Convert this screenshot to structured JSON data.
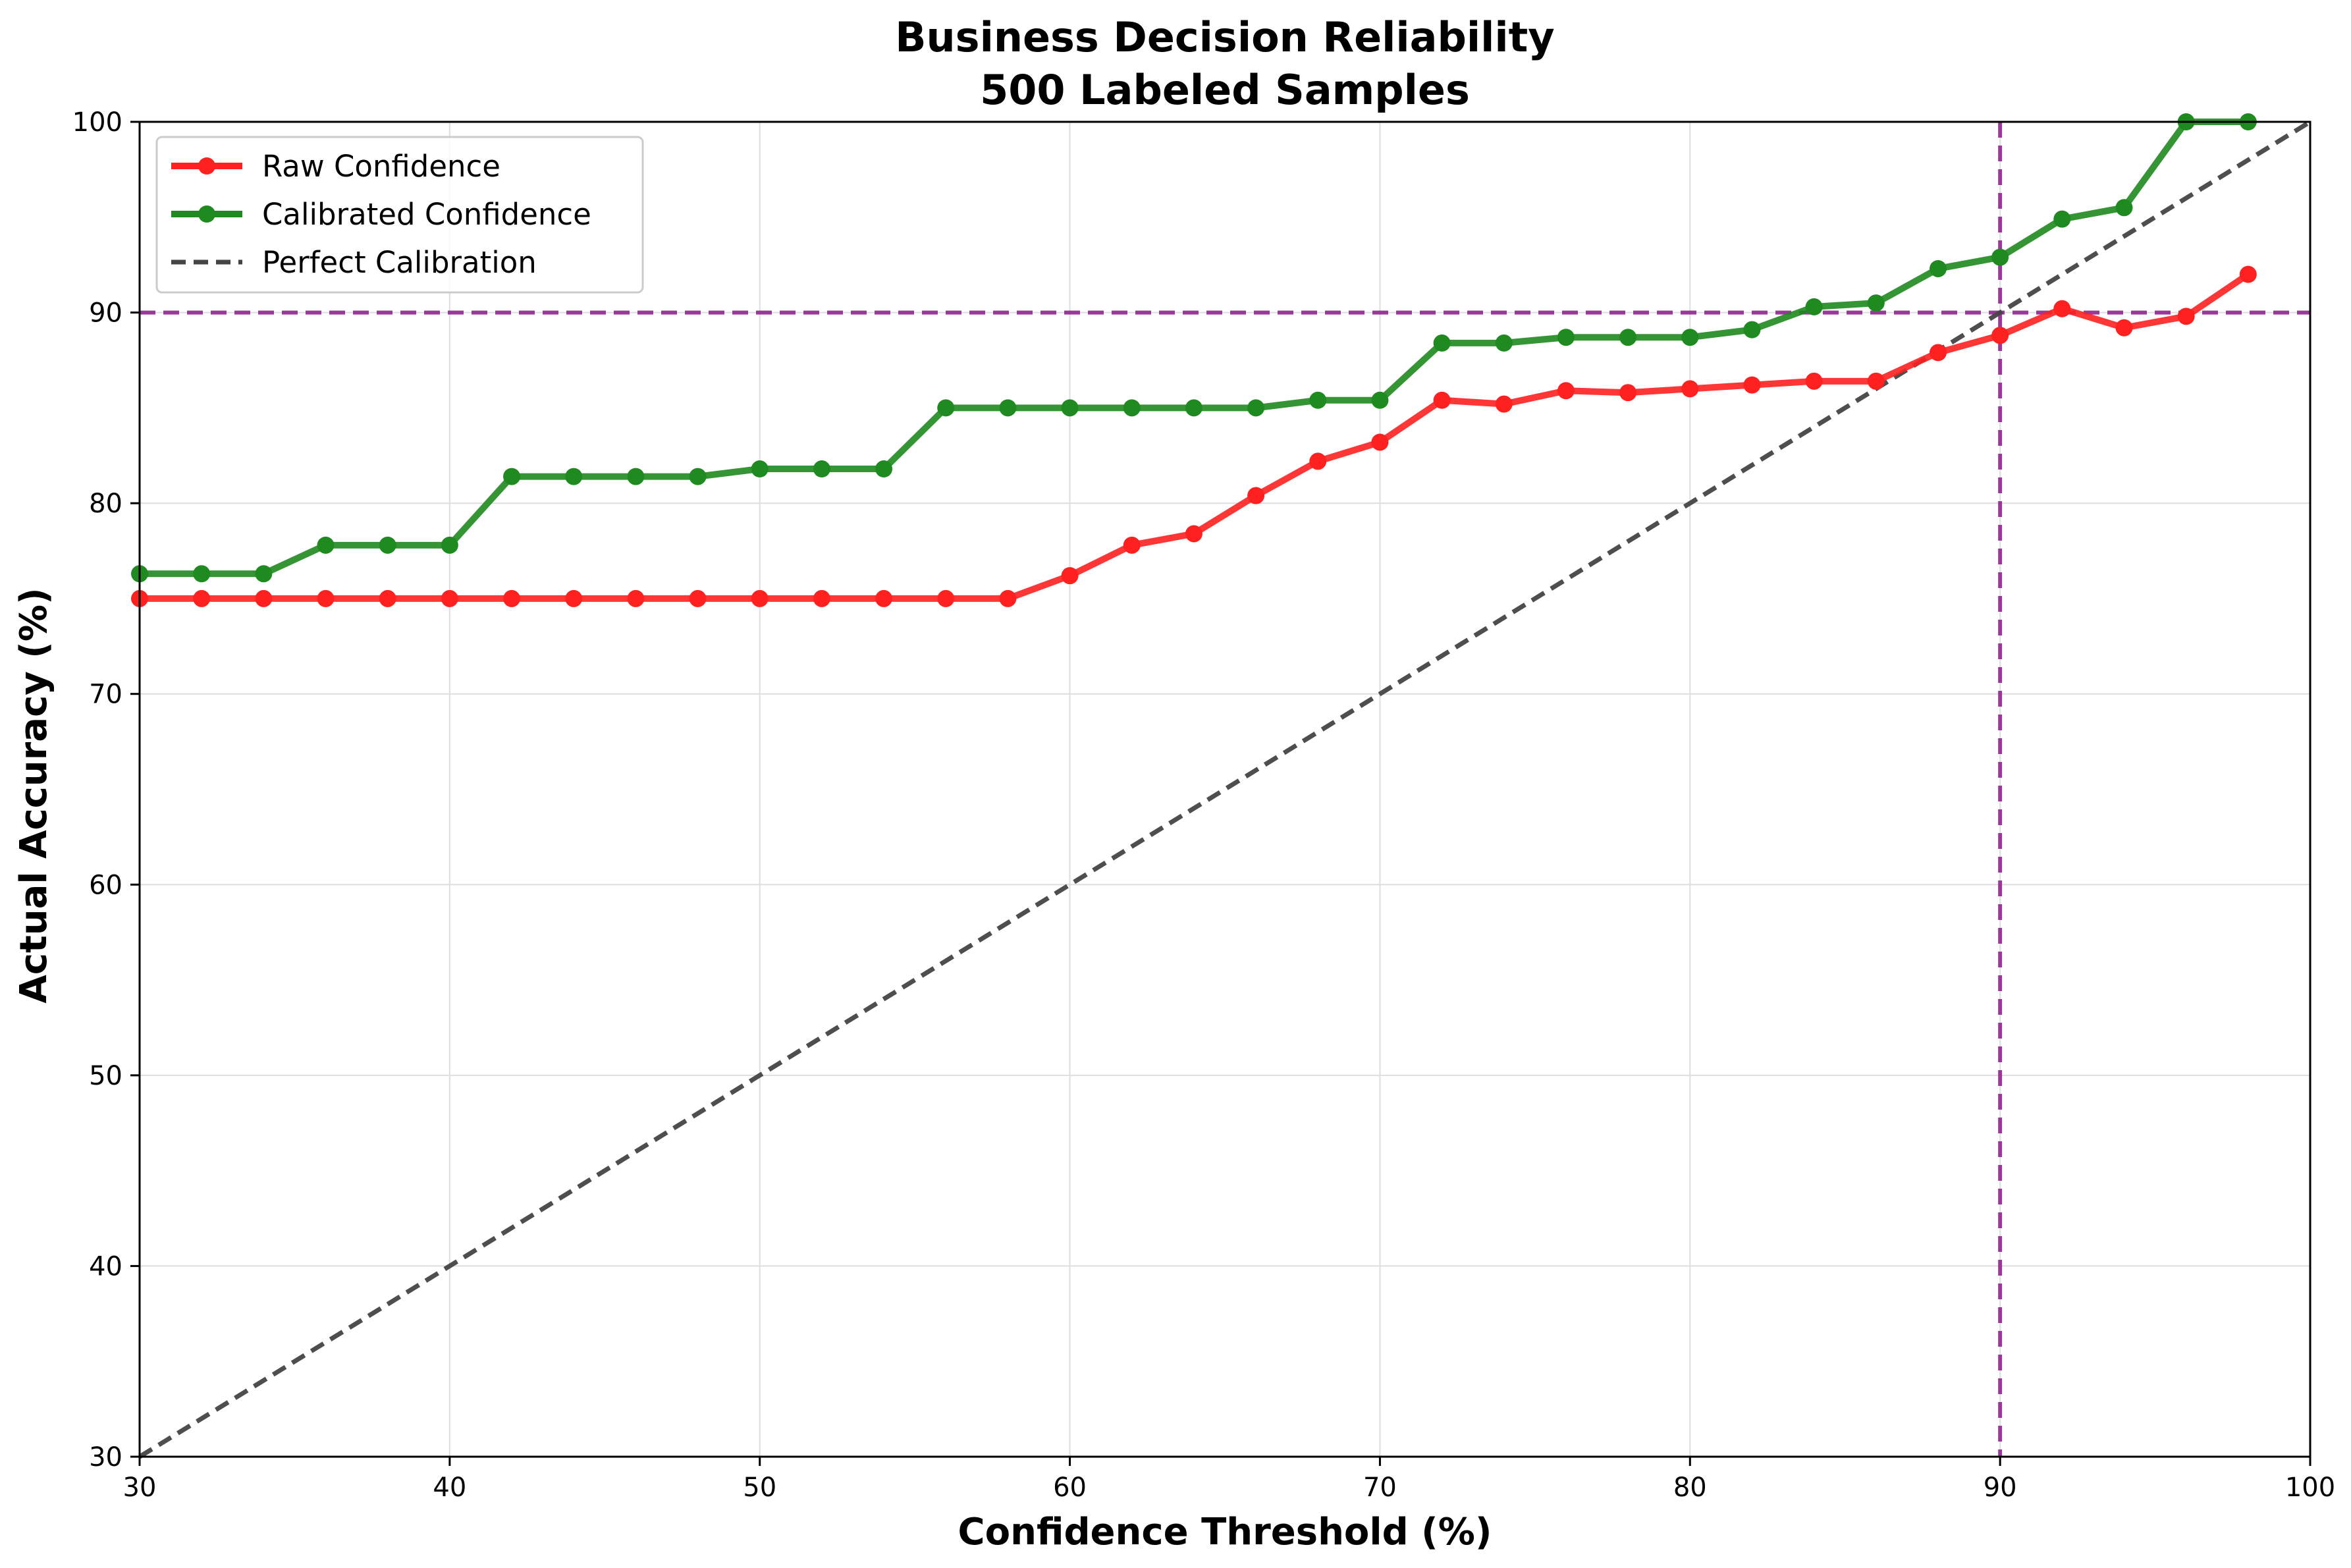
{
  "chart_data": {
    "type": "line",
    "title": "Business Decision Reliability",
    "subtitle": "500 Labeled Samples",
    "xlabel": "Confidence Threshold (%)",
    "ylabel": "Actual Accuracy (%)",
    "xlim": [
      30,
      100
    ],
    "ylim": [
      30,
      100
    ],
    "xticks": [
      30,
      40,
      50,
      60,
      70,
      80,
      90,
      100
    ],
    "yticks": [
      30,
      40,
      50,
      60,
      70,
      80,
      90,
      100
    ],
    "grid": true,
    "legend_position": "top-left",
    "x": [
      30,
      32,
      34,
      36,
      38,
      40,
      42,
      44,
      46,
      48,
      50,
      52,
      54,
      56,
      58,
      60,
      62,
      64,
      66,
      68,
      70,
      72,
      74,
      76,
      78,
      80,
      82,
      84,
      86,
      88,
      90,
      92,
      94,
      96,
      98
    ],
    "series": [
      {
        "name": "Raw Confidence",
        "color": "#ff2020",
        "style": "solid-marker",
        "values": [
          75.0,
          75.0,
          75.0,
          75.0,
          75.0,
          75.0,
          75.0,
          75.0,
          75.0,
          75.0,
          75.0,
          75.0,
          75.0,
          75.0,
          75.0,
          76.2,
          77.8,
          78.4,
          80.4,
          82.2,
          83.2,
          85.4,
          85.2,
          85.9,
          85.8,
          86.0,
          86.2,
          86.4,
          86.4,
          87.9,
          88.8,
          90.2,
          89.2,
          89.8,
          92.0
        ]
      },
      {
        "name": "Calibrated Confidence",
        "color": "#1f8a1f",
        "style": "solid-marker",
        "values": [
          76.3,
          76.3,
          76.3,
          77.8,
          77.8,
          77.8,
          81.4,
          81.4,
          81.4,
          81.4,
          81.8,
          81.8,
          81.8,
          85.0,
          85.0,
          85.0,
          85.0,
          85.0,
          85.0,
          85.4,
          85.4,
          88.4,
          88.4,
          88.7,
          88.7,
          88.7,
          89.1,
          90.3,
          90.5,
          92.3,
          92.9,
          94.9,
          95.5,
          100.0,
          100.0
        ]
      },
      {
        "name": "Perfect Calibration",
        "color": "#444444",
        "style": "dashed",
        "x": [
          30,
          100
        ],
        "values": [
          30,
          100
        ]
      }
    ],
    "reference_lines": [
      {
        "orientation": "horizontal",
        "value": 90,
        "color": "#8b1a8b"
      },
      {
        "orientation": "vertical",
        "value": 90,
        "color": "#8b1a8b"
      }
    ]
  }
}
